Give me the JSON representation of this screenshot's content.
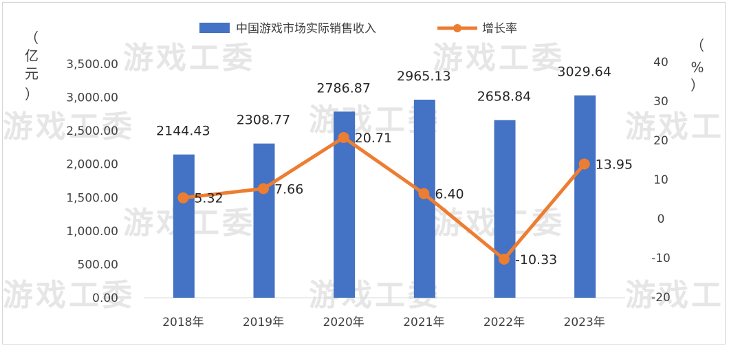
{
  "watermark": "游戏工委",
  "left_unit": [
    "（",
    "亿",
    "元",
    "）"
  ],
  "right_unit": [
    "（",
    "%",
    "）"
  ],
  "colors": {
    "bar": "#4472C4",
    "line": "#ED7D31",
    "grid": "#d9d9d9"
  },
  "chart_data": {
    "type": "bar",
    "categories": [
      "2018年",
      "2019年",
      "2020年",
      "2021年",
      "2022年",
      "2023年"
    ],
    "series": [
      {
        "name": "中国游戏市场实际销售收入",
        "type": "bar",
        "axis": "left",
        "values": [
          2144.43,
          2308.77,
          2786.87,
          2965.13,
          2658.84,
          3029.64
        ],
        "labels": [
          "2144.43",
          "2308.77",
          "2786.87",
          "2965.13",
          "2658.84",
          "3029.64"
        ]
      },
      {
        "name": "增长率",
        "type": "line",
        "axis": "right",
        "values": [
          5.32,
          7.66,
          20.71,
          6.4,
          -10.33,
          13.95
        ],
        "labels": [
          "5.32",
          "7.66",
          "20.71",
          "6.40",
          "-10.33",
          "13.95"
        ]
      }
    ],
    "y_left": {
      "range": [
        0,
        3500
      ],
      "ticks": [
        0,
        500,
        1000,
        1500,
        2000,
        2500,
        3000,
        3500
      ],
      "tick_labels": [
        "0.00",
        "500.00",
        "1,000.00",
        "1,500.00",
        "2,000.00",
        "2,500.00",
        "3,000.00",
        "3,500.00"
      ]
    },
    "y_right": {
      "range": [
        -20,
        40
      ],
      "ticks": [
        -20,
        -10,
        0,
        10,
        20,
        30,
        40
      ],
      "tick_labels": [
        "-20",
        "-10",
        "0",
        "10",
        "20",
        "30",
        "40"
      ]
    },
    "legend_position": "top-center",
    "grid": false
  }
}
